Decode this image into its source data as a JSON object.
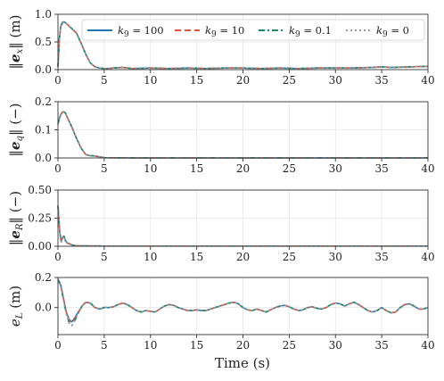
{
  "chart_data": [
    {
      "type": "line",
      "ylabel": "‖e_x‖ (m)",
      "xlim": [
        0,
        40
      ],
      "ylim": [
        0,
        1.0
      ],
      "xticks": [
        0,
        5,
        10,
        15,
        20,
        25,
        30,
        35,
        40
      ],
      "yticks": [
        "0.0",
        "0.5",
        "1.0"
      ],
      "x": [
        0,
        0.15,
        0.3,
        0.5,
        0.7,
        1.0,
        1.5,
        2.0,
        2.5,
        3.0,
        3.5,
        4.0,
        4.5,
        5.0,
        5.5,
        6.0,
        7.0,
        8.0,
        10,
        12,
        14,
        16,
        18,
        20,
        22,
        24,
        26,
        28,
        30,
        32,
        34,
        35,
        36,
        38,
        40
      ],
      "series": [
        {
          "name": "k_9 = 100",
          "values": [
            0.05,
            0.55,
            0.78,
            0.86,
            0.86,
            0.82,
            0.74,
            0.66,
            0.48,
            0.28,
            0.12,
            0.05,
            0.03,
            0.02,
            0.02,
            0.03,
            0.04,
            0.02,
            0.03,
            0.02,
            0.03,
            0.02,
            0.03,
            0.03,
            0.02,
            0.03,
            0.02,
            0.03,
            0.03,
            0.03,
            0.04,
            0.05,
            0.04,
            0.05,
            0.06
          ]
        },
        {
          "name": "k_9 = 10",
          "values": [
            0.05,
            0.55,
            0.78,
            0.86,
            0.86,
            0.82,
            0.74,
            0.66,
            0.48,
            0.28,
            0.12,
            0.05,
            0.03,
            0.02,
            0.02,
            0.03,
            0.04,
            0.02,
            0.03,
            0.02,
            0.03,
            0.02,
            0.03,
            0.03,
            0.02,
            0.03,
            0.02,
            0.03,
            0.03,
            0.03,
            0.04,
            0.05,
            0.04,
            0.05,
            0.06
          ]
        },
        {
          "name": "k_9 = 0.1",
          "values": [
            0.05,
            0.55,
            0.78,
            0.86,
            0.86,
            0.82,
            0.74,
            0.66,
            0.48,
            0.28,
            0.12,
            0.05,
            0.03,
            0.02,
            0.02,
            0.03,
            0.04,
            0.02,
            0.03,
            0.02,
            0.03,
            0.02,
            0.03,
            0.03,
            0.02,
            0.03,
            0.02,
            0.03,
            0.03,
            0.03,
            0.04,
            0.05,
            0.04,
            0.05,
            0.06
          ]
        },
        {
          "name": "k_9 = 0",
          "values": [
            0.05,
            0.55,
            0.78,
            0.86,
            0.86,
            0.82,
            0.74,
            0.66,
            0.48,
            0.28,
            0.12,
            0.05,
            0.03,
            0.02,
            0.02,
            0.03,
            0.04,
            0.02,
            0.03,
            0.02,
            0.03,
            0.02,
            0.03,
            0.03,
            0.02,
            0.03,
            0.02,
            0.03,
            0.03,
            0.03,
            0.04,
            0.05,
            0.04,
            0.05,
            0.06
          ]
        }
      ]
    },
    {
      "type": "line",
      "ylabel": "‖e_q‖ (−)",
      "xlim": [
        0,
        40
      ],
      "ylim": [
        0,
        0.2
      ],
      "xticks": [
        0,
        5,
        10,
        15,
        20,
        25,
        30,
        35,
        40
      ],
      "yticks": [
        "0.0",
        "0.1",
        "0.2"
      ],
      "x": [
        0,
        0.2,
        0.4,
        0.6,
        0.8,
        1.0,
        1.5,
        2.0,
        2.5,
        3.0,
        3.5,
        4.0,
        4.5,
        5.0,
        6.0,
        8.0,
        10,
        20,
        30,
        40
      ],
      "series": [
        {
          "name": "k_9 = 100",
          "values": [
            0.12,
            0.145,
            0.16,
            0.165,
            0.16,
            0.145,
            0.11,
            0.07,
            0.035,
            0.012,
            0.008,
            0.007,
            0.004,
            0.001,
            0.0005,
            0.0,
            0.0,
            0.0,
            0.0,
            0.0
          ]
        },
        {
          "name": "k_9 = 10",
          "values": [
            0.12,
            0.145,
            0.16,
            0.165,
            0.16,
            0.145,
            0.11,
            0.07,
            0.035,
            0.012,
            0.008,
            0.007,
            0.004,
            0.001,
            0.0005,
            0.0,
            0.0,
            0.0,
            0.0,
            0.0
          ]
        },
        {
          "name": "k_9 = 0.1",
          "values": [
            0.12,
            0.145,
            0.16,
            0.165,
            0.16,
            0.145,
            0.11,
            0.07,
            0.035,
            0.012,
            0.008,
            0.007,
            0.004,
            0.001,
            0.0005,
            0.0,
            0.0,
            0.0,
            0.0,
            0.0
          ]
        },
        {
          "name": "k_9 = 0",
          "values": [
            0.12,
            0.145,
            0.16,
            0.165,
            0.16,
            0.145,
            0.11,
            0.07,
            0.035,
            0.012,
            0.008,
            0.007,
            0.004,
            0.001,
            0.0005,
            0.0,
            0.0,
            0.0,
            0.0,
            0.0
          ]
        }
      ]
    },
    {
      "type": "line",
      "ylabel": "‖e_R‖ (−)",
      "xlim": [
        0,
        40
      ],
      "ylim": [
        0,
        0.5
      ],
      "xticks": [
        0,
        5,
        10,
        15,
        20,
        25,
        30,
        35,
        40
      ],
      "yticks": [
        "0.00",
        "0.25",
        "0.50"
      ],
      "x": [
        0,
        0.1,
        0.2,
        0.35,
        0.5,
        0.65,
        0.8,
        1.0,
        1.3,
        1.6,
        2.0,
        2.5,
        3.0,
        5,
        10,
        20,
        30,
        40
      ],
      "series": [
        {
          "name": "k_9 = 100",
          "values": [
            0.36,
            0.24,
            0.12,
            0.04,
            0.08,
            0.09,
            0.05,
            0.03,
            0.02,
            0.01,
            0.005,
            0.004,
            0.003,
            0.002,
            0.002,
            0.002,
            0.002,
            0.002
          ]
        },
        {
          "name": "k_9 = 10",
          "values": [
            0.36,
            0.24,
            0.12,
            0.04,
            0.08,
            0.09,
            0.05,
            0.03,
            0.02,
            0.01,
            0.005,
            0.004,
            0.003,
            0.002,
            0.002,
            0.002,
            0.002,
            0.002
          ]
        },
        {
          "name": "k_9 = 0.1",
          "values": [
            0.36,
            0.24,
            0.12,
            0.04,
            0.08,
            0.09,
            0.05,
            0.03,
            0.02,
            0.01,
            0.005,
            0.004,
            0.003,
            0.002,
            0.002,
            0.002,
            0.002,
            0.002
          ]
        },
        {
          "name": "k_9 = 0",
          "values": [
            0.36,
            0.24,
            0.12,
            0.04,
            0.08,
            0.09,
            0.05,
            0.03,
            0.02,
            0.01,
            0.005,
            0.004,
            0.003,
            0.002,
            0.002,
            0.002,
            0.002,
            0.002
          ]
        }
      ]
    },
    {
      "type": "line",
      "ylabel": "e_L (m)",
      "xlim": [
        0,
        40
      ],
      "ylim": [
        -0.18,
        0.2
      ],
      "xticks": [
        0,
        5,
        10,
        15,
        20,
        25,
        30,
        35,
        40
      ],
      "yticks": [
        "0.0",
        "0.2"
      ],
      "x": [
        0,
        0.3,
        0.6,
        0.9,
        1.2,
        1.5,
        1.8,
        2.2,
        2.6,
        3.0,
        3.5,
        4.0,
        4.5,
        5.0,
        5.5,
        6.0,
        6.5,
        7.0,
        7.5,
        8.0,
        8.5,
        9.0,
        9.5,
        10.0,
        10.5,
        11.0,
        11.5,
        12.0,
        12.5,
        13.0,
        13.5,
        14.0,
        14.5,
        15.0,
        15.5,
        16.0,
        16.5,
        17.0,
        17.5,
        18.0,
        18.5,
        19.0,
        19.5,
        20.0,
        20.5,
        21.0,
        21.5,
        22.0,
        22.5,
        23.0,
        23.5,
        24.0,
        24.5,
        25.0,
        25.5,
        26.0,
        26.5,
        27.0,
        27.5,
        28.0,
        28.5,
        29.0,
        29.5,
        30.0,
        30.5,
        31.0,
        31.5,
        32.0,
        32.5,
        33.0,
        33.5,
        34.0,
        34.5,
        35.0,
        35.5,
        36.0,
        36.5,
        37.0,
        37.5,
        38.0,
        38.5,
        39.0,
        39.5,
        40.0
      ],
      "series": [
        {
          "name": "k_9 = 100",
          "values": [
            0.19,
            0.15,
            0.06,
            -0.03,
            -0.08,
            -0.095,
            -0.07,
            -0.03,
            0.01,
            0.035,
            0.03,
            0.0,
            -0.01,
            0.0,
            0.0,
            0.005,
            0.02,
            0.03,
            0.02,
            0.0,
            -0.02,
            -0.03,
            -0.02,
            -0.025,
            -0.03,
            -0.01,
            0.01,
            0.02,
            0.015,
            0.0,
            -0.01,
            -0.02,
            -0.02,
            -0.015,
            -0.02,
            -0.02,
            -0.01,
            0.0,
            0.01,
            0.02,
            0.03,
            0.035,
            0.025,
            0.0,
            -0.015,
            -0.02,
            -0.01,
            -0.02,
            -0.03,
            -0.015,
            0.0,
            0.01,
            0.015,
            0.005,
            -0.01,
            -0.02,
            -0.015,
            0.0,
            0.005,
            -0.005,
            -0.01,
            0.0,
            0.02,
            0.03,
            0.025,
            0.01,
            0.025,
            0.035,
            0.02,
            0.0,
            -0.02,
            -0.03,
            -0.02,
            0.0,
            -0.02,
            -0.035,
            -0.03,
            0.0,
            0.02,
            0.025,
            0.01,
            -0.01,
            -0.01,
            0.0
          ]
        },
        {
          "name": "k_9 = 10",
          "values": [
            0.19,
            0.15,
            0.06,
            -0.03,
            -0.085,
            -0.1,
            -0.075,
            -0.035,
            0.01,
            0.035,
            0.03,
            0.0,
            -0.01,
            0.0,
            0.0,
            0.005,
            0.02,
            0.03,
            0.02,
            0.0,
            -0.02,
            -0.03,
            -0.02,
            -0.025,
            -0.03,
            -0.01,
            0.01,
            0.02,
            0.015,
            0.0,
            -0.01,
            -0.02,
            -0.02,
            -0.015,
            -0.02,
            -0.02,
            -0.01,
            0.0,
            0.01,
            0.02,
            0.03,
            0.035,
            0.025,
            0.0,
            -0.015,
            -0.02,
            -0.01,
            -0.02,
            -0.03,
            -0.015,
            0.0,
            0.01,
            0.015,
            0.005,
            -0.01,
            -0.02,
            -0.015,
            0.0,
            0.005,
            -0.005,
            -0.01,
            0.0,
            0.02,
            0.03,
            0.025,
            0.01,
            0.025,
            0.035,
            0.02,
            0.0,
            -0.02,
            -0.03,
            -0.02,
            0.0,
            -0.02,
            -0.035,
            -0.03,
            0.0,
            0.02,
            0.025,
            0.01,
            -0.01,
            -0.01,
            0.0
          ]
        },
        {
          "name": "k_9 = 0.1",
          "values": [
            0.19,
            0.14,
            0.05,
            -0.04,
            -0.1,
            -0.12,
            -0.09,
            -0.04,
            0.01,
            0.035,
            0.03,
            0.0,
            -0.01,
            0.0,
            0.0,
            0.005,
            0.02,
            0.03,
            0.02,
            0.0,
            -0.02,
            -0.03,
            -0.02,
            -0.025,
            -0.03,
            -0.01,
            0.01,
            0.02,
            0.015,
            0.0,
            -0.01,
            -0.02,
            -0.02,
            -0.015,
            -0.02,
            -0.02,
            -0.01,
            0.0,
            0.01,
            0.02,
            0.03,
            0.035,
            0.025,
            0.0,
            -0.015,
            -0.02,
            -0.01,
            -0.02,
            -0.03,
            -0.015,
            0.0,
            0.01,
            0.015,
            0.005,
            -0.01,
            -0.02,
            -0.015,
            0.0,
            0.005,
            -0.005,
            -0.01,
            0.0,
            0.02,
            0.03,
            0.025,
            0.01,
            0.025,
            0.035,
            0.02,
            0.0,
            -0.02,
            -0.03,
            -0.02,
            0.0,
            -0.02,
            -0.035,
            -0.03,
            0.0,
            0.02,
            0.025,
            0.01,
            -0.01,
            -0.01,
            0.0
          ]
        },
        {
          "name": "k_9 = 0",
          "values": [
            0.19,
            0.14,
            0.05,
            -0.04,
            -0.1,
            -0.12,
            -0.09,
            -0.04,
            0.01,
            0.035,
            0.03,
            0.0,
            -0.01,
            0.0,
            0.0,
            0.005,
            0.02,
            0.03,
            0.02,
            0.0,
            -0.02,
            -0.03,
            -0.02,
            -0.025,
            -0.03,
            -0.01,
            0.01,
            0.02,
            0.015,
            0.0,
            -0.01,
            -0.02,
            -0.02,
            -0.015,
            -0.02,
            -0.02,
            -0.01,
            0.0,
            0.01,
            0.02,
            0.03,
            0.035,
            0.025,
            0.0,
            -0.015,
            -0.02,
            -0.01,
            -0.02,
            -0.03,
            -0.015,
            0.0,
            0.01,
            0.015,
            0.005,
            -0.01,
            -0.02,
            -0.015,
            0.0,
            0.005,
            -0.005,
            -0.01,
            0.0,
            0.02,
            0.03,
            0.025,
            0.01,
            0.025,
            0.035,
            0.02,
            0.0,
            -0.02,
            -0.03,
            -0.02,
            0.0,
            -0.02,
            -0.035,
            -0.03,
            0.0,
            0.02,
            0.025,
            0.01,
            -0.01,
            -0.01,
            0.0
          ]
        }
      ]
    }
  ],
  "legend": {
    "placement": "top-right of first panel",
    "entries": [
      {
        "label": "k_9 = 100",
        "color": "#1f77b4",
        "dash": "solid"
      },
      {
        "label": "k_9 = 10",
        "color": "#e0533b",
        "dash": "dashed"
      },
      {
        "label": "k_9 = 0.1",
        "color": "#1b8a6b",
        "dash": "dashdot"
      },
      {
        "label": "k_9 = 0",
        "color": "#999999",
        "dash": "dotted"
      }
    ]
  },
  "xlabel": "Time (s)"
}
